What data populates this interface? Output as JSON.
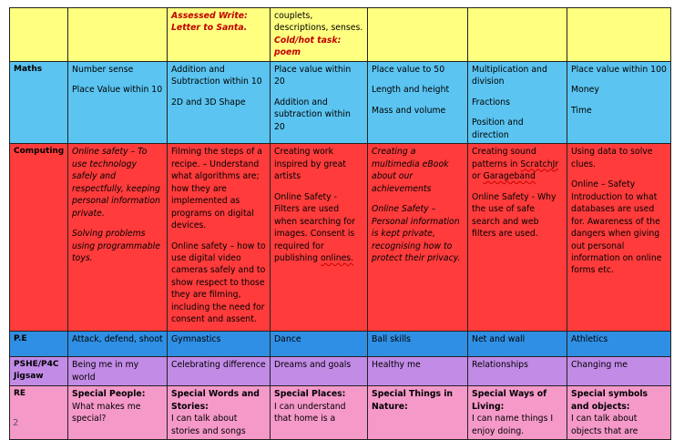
{
  "top_row": {
    "c2_line1": "Assessed Write:",
    "c2_line2": "Letter to Santa.",
    "c3_line1": "couplets,",
    "c3_line2": "descriptions, senses.",
    "c3_line3": "Cold/hot task: poem"
  },
  "maths": {
    "label": "Maths",
    "c1": [
      "Number sense",
      "Place Value within 10"
    ],
    "c2": [
      "Addition and Subtraction within 10",
      "2D and 3D Shape"
    ],
    "c3": [
      "Place value within 20",
      "Addition and subtraction within 20"
    ],
    "c4": [
      "Place value to 50",
      "Length and height",
      "Mass and volume"
    ],
    "c5": [
      "Multiplication and division",
      "Fractions",
      "Position and direction"
    ],
    "c6": [
      "Place value within 100",
      "Money",
      "Time"
    ]
  },
  "computing": {
    "label": "Computing",
    "c1": [
      "Online safety – To use technology safely and respectfully, keeping personal information private.",
      "Solving problems using programmable toys."
    ],
    "c2": [
      "Filming the steps of a recipe. – Understand what algorithms are; how they are implemented as programs on digital devices.",
      "Online safety – how to use digital video cameras safely and to show respect to those they are filming, including the need for consent and assent."
    ],
    "c3": [
      "Creating work inspired by great artists",
      "Online Safety - Filters are used when searching for images. Consent is required for publishing",
      "onlines."
    ],
    "c4": [
      "Creating a multimedia eBook about our achievements",
      "Online Safety – Personal information is kept private, recognising how to protect their privacy."
    ],
    "c5_a": "Creating sound patterns in",
    "c5_b": "ScratchJr",
    "c5_c": "or",
    "c5_d": "Garageband",
    "c5_e": "Online Safety - Why the use of safe search and web filters are used.",
    "c6": [
      "Using data to solve clues.",
      "Online – Safety Introduction to what databases are used for.  Awareness of the dangers when giving out personal information on online forms etc."
    ]
  },
  "pe": {
    "label": "P.E",
    "cells": [
      "Attack, defend, shoot",
      "Gymnastics",
      "Dance",
      "Ball skills",
      "Net and wall",
      "Athletics"
    ]
  },
  "pshe": {
    "label": "PSHE/P4C Jigsaw",
    "cells": [
      "Being me in my world",
      "Celebrating difference",
      "Dreams and goals",
      "Healthy me",
      "Relationships",
      "Changing me"
    ]
  },
  "re": {
    "label": "RE",
    "heads": [
      "Special People:",
      "Special Words and Stories:",
      "Special Places:",
      "Special Things in Nature:",
      "Special Ways of Living:",
      "Special symbols and objects:"
    ],
    "texts": [
      "What makes me special?",
      "I can talk about stories and songs",
      "I can understand that home is a",
      "",
      "I can name things I enjoy doing.",
      "I can talk about objects that are"
    ]
  },
  "page_number": "2"
}
